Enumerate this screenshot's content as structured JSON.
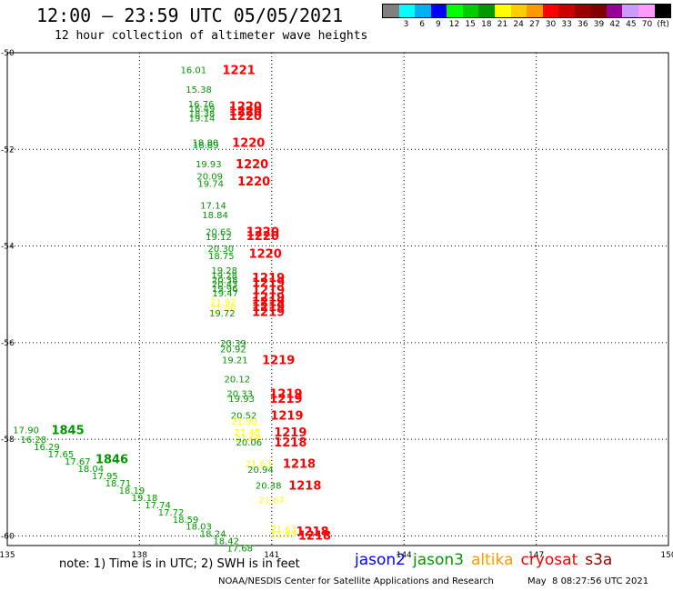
{
  "header": {
    "title": "12:00 – 23:59 UTC 05/05/2021",
    "subtitle": "12 hour collection of altimeter wave heights"
  },
  "legend": {
    "scale": [
      {
        "label": "",
        "color": "#808080"
      },
      {
        "label": "3",
        "color": "#00ffff"
      },
      {
        "label": "6",
        "color": "#00b0f0"
      },
      {
        "label": "9",
        "color": "#0000ff"
      },
      {
        "label": "12",
        "color": "#00ff00"
      },
      {
        "label": "15",
        "color": "#00cc00"
      },
      {
        "label": "18",
        "color": "#009900"
      },
      {
        "label": "21",
        "color": "#ffff00"
      },
      {
        "label": "24",
        "color": "#ffcc00"
      },
      {
        "label": "27",
        "color": "#ff9900"
      },
      {
        "label": "30",
        "color": "#ff0000"
      },
      {
        "label": "33",
        "color": "#cc0000"
      },
      {
        "label": "36",
        "color": "#990000"
      },
      {
        "label": "39",
        "color": "#800000"
      },
      {
        "label": "42",
        "color": "#990099"
      },
      {
        "label": "45",
        "color": "#cc99ff"
      },
      {
        "label": "70",
        "color": "#ff99ff"
      },
      {
        "label": "(ft)",
        "color": "#000000"
      }
    ]
  },
  "footer": {
    "note": "note: 1) Time is in UTC; 2) SWH is in feet",
    "credit": "NOAA/NESDIS Center for Satellite Applications and Research",
    "timestamp": "May  8 08:27:56 UTC 2021",
    "satellites": [
      {
        "name": "jason2",
        "color": "#0000ff"
      },
      {
        "name": "jason3",
        "color": "#009900"
      },
      {
        "name": "altika",
        "color": "#ff9900"
      },
      {
        "name": "cryosat",
        "color": "#ff0000"
      },
      {
        "name": "s3a",
        "color": "#990000"
      }
    ]
  },
  "chart_data": {
    "type": "scatter",
    "title": "12:00 – 23:59 UTC 05/05/2021",
    "subtitle": "12 hour collection of altimeter wave heights",
    "xlim": [
      135,
      150
    ],
    "ylim": [
      -60.2,
      -50
    ],
    "xticks": [
      "135",
      "138",
      "141",
      "144",
      "147",
      "150"
    ],
    "yticks": [
      "-50",
      "-52",
      "-54",
      "-56",
      "-58",
      "-60"
    ],
    "grid": true,
    "points": [
      {
        "lon": 138.93,
        "lat": -50.35,
        "swh": "16.01",
        "color": "#009900"
      },
      {
        "lon": 139.05,
        "lat": -50.75,
        "swh": "15.38",
        "color": "#009900"
      },
      {
        "lon": 139.1,
        "lat": -51.05,
        "swh": "16.76",
        "color": "#009900"
      },
      {
        "lon": 139.12,
        "lat": -51.15,
        "swh": "16.49",
        "color": "#009900"
      },
      {
        "lon": 139.12,
        "lat": -51.25,
        "swh": "18.38",
        "color": "#009900"
      },
      {
        "lon": 139.12,
        "lat": -51.35,
        "swh": "19.14",
        "color": "#009900"
      },
      {
        "lon": 139.2,
        "lat": -51.85,
        "swh": "18.80",
        "color": "#009900"
      },
      {
        "lon": 139.21,
        "lat": -51.9,
        "swh": "18.89",
        "color": "#009900"
      },
      {
        "lon": 139.27,
        "lat": -52.3,
        "swh": "19.93",
        "color": "#009900"
      },
      {
        "lon": 139.3,
        "lat": -52.55,
        "swh": "20.09",
        "color": "#009900"
      },
      {
        "lon": 139.32,
        "lat": -52.7,
        "swh": "19.74",
        "color": "#009900"
      },
      {
        "lon": 139.38,
        "lat": -53.15,
        "swh": "17.14",
        "color": "#009900"
      },
      {
        "lon": 139.42,
        "lat": -53.35,
        "swh": "18.84",
        "color": "#009900"
      },
      {
        "lon": 139.5,
        "lat": -53.7,
        "swh": "20.65",
        "color": "#009900"
      },
      {
        "lon": 139.5,
        "lat": -53.8,
        "swh": "19.12",
        "color": "#009900"
      },
      {
        "lon": 139.55,
        "lat": -54.05,
        "swh": "20.30",
        "color": "#009900"
      },
      {
        "lon": 139.56,
        "lat": -54.2,
        "swh": "18.75",
        "color": "#009900"
      },
      {
        "lon": 139.63,
        "lat": -54.5,
        "swh": "19.28",
        "color": "#009900"
      },
      {
        "lon": 139.63,
        "lat": -54.6,
        "swh": "19.28",
        "color": "#009900"
      },
      {
        "lon": 139.64,
        "lat": -54.7,
        "swh": "20.38",
        "color": "#009900"
      },
      {
        "lon": 139.64,
        "lat": -54.78,
        "swh": "20.43",
        "color": "#009900"
      },
      {
        "lon": 139.64,
        "lat": -54.87,
        "swh": "19.96",
        "color": "#009900"
      },
      {
        "lon": 139.65,
        "lat": -54.97,
        "swh": "19.47",
        "color": "#009900"
      },
      {
        "lon": 139.6,
        "lat": -55.15,
        "swh": "21.92",
        "color": "#ffff00"
      },
      {
        "lon": 139.6,
        "lat": -55.28,
        "swh": "21.06",
        "color": "#ffff00"
      },
      {
        "lon": 139.58,
        "lat": -55.38,
        "swh": "19.72",
        "color": "#009900"
      },
      {
        "lon": 139.83,
        "lat": -56.0,
        "swh": "20.39",
        "color": "#009900"
      },
      {
        "lon": 139.83,
        "lat": -56.13,
        "swh": "20.92",
        "color": "#009900"
      },
      {
        "lon": 139.87,
        "lat": -56.35,
        "swh": "19.21",
        "color": "#009900"
      },
      {
        "lon": 139.92,
        "lat": -56.75,
        "swh": "20.12",
        "color": "#009900"
      },
      {
        "lon": 139.98,
        "lat": -57.05,
        "swh": "20.33",
        "color": "#009900"
      },
      {
        "lon": 140.02,
        "lat": -57.15,
        "swh": "19.93",
        "color": "#009900"
      },
      {
        "lon": 140.07,
        "lat": -57.5,
        "swh": "20.52",
        "color": "#009900"
      },
      {
        "lon": 140.08,
        "lat": -57.62,
        "swh": "21.90",
        "color": "#ffff00"
      },
      {
        "lon": 140.15,
        "lat": -57.85,
        "swh": "21.45",
        "color": "#ffff00"
      },
      {
        "lon": 140.17,
        "lat": -57.97,
        "swh": "21.69",
        "color": "#ffff00"
      },
      {
        "lon": 140.19,
        "lat": -58.05,
        "swh": "20.06",
        "color": "#009900"
      },
      {
        "lon": 140.4,
        "lat": -58.5,
        "swh": "21.63",
        "color": "#ffff00"
      },
      {
        "lon": 140.45,
        "lat": -58.62,
        "swh": "20.94",
        "color": "#009900"
      },
      {
        "lon": 140.63,
        "lat": -58.95,
        "swh": "20.38",
        "color": "#009900"
      },
      {
        "lon": 140.7,
        "lat": -59.25,
        "swh": "21.67",
        "color": "#ffff00"
      },
      {
        "lon": 140.97,
        "lat": -59.85,
        "swh": "21.63",
        "color": "#ffff00"
      },
      {
        "lon": 140.97,
        "lat": -59.95,
        "swh": "21.63",
        "color": "#ffff00"
      },
      {
        "lon": 135.13,
        "lat": -57.8,
        "swh": "17.90",
        "color": "#009900"
      },
      {
        "lon": 135.3,
        "lat": -58.0,
        "swh": "16.28",
        "color": "#009900"
      },
      {
        "lon": 135.6,
        "lat": -58.15,
        "swh": "16.29",
        "color": "#009900"
      },
      {
        "lon": 135.92,
        "lat": -58.3,
        "swh": "17.65",
        "color": "#009900"
      },
      {
        "lon": 136.3,
        "lat": -58.45,
        "swh": "17.67",
        "color": "#009900"
      },
      {
        "lon": 136.6,
        "lat": -58.6,
        "swh": "18.04",
        "color": "#009900"
      },
      {
        "lon": 136.92,
        "lat": -58.75,
        "swh": "17.95",
        "color": "#009900"
      },
      {
        "lon": 137.22,
        "lat": -58.9,
        "swh": "18.71",
        "color": "#009900"
      },
      {
        "lon": 137.53,
        "lat": -59.05,
        "swh": "18.19",
        "color": "#009900"
      },
      {
        "lon": 137.82,
        "lat": -59.2,
        "swh": "19.18",
        "color": "#009900"
      },
      {
        "lon": 138.12,
        "lat": -59.35,
        "swh": "17.74",
        "color": "#009900"
      },
      {
        "lon": 138.42,
        "lat": -59.5,
        "swh": "17.72",
        "color": "#009900"
      },
      {
        "lon": 138.75,
        "lat": -59.65,
        "swh": "18.59",
        "color": "#009900"
      },
      {
        "lon": 139.05,
        "lat": -59.8,
        "swh": "18.03",
        "color": "#009900"
      },
      {
        "lon": 139.37,
        "lat": -59.95,
        "swh": "18.24",
        "color": "#009900"
      },
      {
        "lon": 139.67,
        "lat": -60.1,
        "swh": "18.42",
        "color": "#009900"
      },
      {
        "lon": 139.98,
        "lat": -60.25,
        "swh": "17.68",
        "color": "#009900"
      }
    ],
    "time_labels": [
      {
        "lon": 139.88,
        "lat": -50.35,
        "text": "1221",
        "color": "#ff0000"
      },
      {
        "lon": 140.03,
        "lat": -51.1,
        "text": "1220",
        "color": "#ff0000"
      },
      {
        "lon": 140.03,
        "lat": -51.2,
        "text": "1220",
        "color": "#ff0000"
      },
      {
        "lon": 140.03,
        "lat": -51.3,
        "text": "1220",
        "color": "#ff0000"
      },
      {
        "lon": 140.1,
        "lat": -51.85,
        "text": "1220",
        "color": "#ff0000"
      },
      {
        "lon": 140.18,
        "lat": -52.3,
        "text": "1220",
        "color": "#ff0000"
      },
      {
        "lon": 140.22,
        "lat": -52.65,
        "text": "1220",
        "color": "#ff0000"
      },
      {
        "lon": 140.42,
        "lat": -53.7,
        "text": "1220",
        "color": "#ff0000"
      },
      {
        "lon": 140.42,
        "lat": -53.78,
        "text": "1220",
        "color": "#ff0000"
      },
      {
        "lon": 140.48,
        "lat": -54.15,
        "text": "1220",
        "color": "#ff0000"
      },
      {
        "lon": 140.55,
        "lat": -54.65,
        "text": "1219",
        "color": "#ff0000"
      },
      {
        "lon": 140.55,
        "lat": -54.75,
        "text": "1219",
        "color": "#ff0000"
      },
      {
        "lon": 140.55,
        "lat": -54.9,
        "text": "1219",
        "color": "#ff0000"
      },
      {
        "lon": 140.55,
        "lat": -55.05,
        "text": "1219",
        "color": "#ff0000"
      },
      {
        "lon": 140.55,
        "lat": -55.15,
        "text": "1219",
        "color": "#ff0000"
      },
      {
        "lon": 140.55,
        "lat": -55.25,
        "text": "1219",
        "color": "#ff0000"
      },
      {
        "lon": 140.55,
        "lat": -55.35,
        "text": "1219",
        "color": "#ff0000"
      },
      {
        "lon": 140.78,
        "lat": -56.35,
        "text": "1219",
        "color": "#ff0000"
      },
      {
        "lon": 140.95,
        "lat": -57.05,
        "text": "1219",
        "color": "#ff0000"
      },
      {
        "lon": 140.95,
        "lat": -57.15,
        "text": "1219",
        "color": "#ff0000"
      },
      {
        "lon": 140.97,
        "lat": -57.5,
        "text": "1219",
        "color": "#ff0000"
      },
      {
        "lon": 141.05,
        "lat": -57.85,
        "text": "1219",
        "color": "#ff0000"
      },
      {
        "lon": 141.05,
        "lat": -58.05,
        "text": "1218",
        "color": "#ff0000"
      },
      {
        "lon": 141.25,
        "lat": -58.5,
        "text": "1218",
        "color": "#ff0000"
      },
      {
        "lon": 141.38,
        "lat": -58.95,
        "text": "1218",
        "color": "#ff0000"
      },
      {
        "lon": 141.55,
        "lat": -59.9,
        "text": "1218",
        "color": "#ff0000"
      },
      {
        "lon": 141.6,
        "lat": -59.98,
        "text": "1218",
        "color": "#ff0000"
      },
      {
        "lon": 136.0,
        "lat": -57.8,
        "text": "1845",
        "color": "#009900"
      },
      {
        "lon": 137.0,
        "lat": -58.4,
        "text": "1846",
        "color": "#009900"
      }
    ]
  }
}
